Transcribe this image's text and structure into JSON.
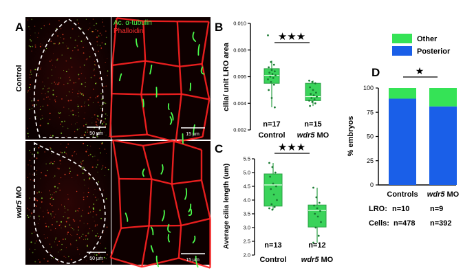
{
  "figure": {
    "panel_letters": [
      "A",
      "B",
      "C",
      "D"
    ],
    "stain_labels": [
      "Ac. α-tubulin",
      "Phalloidin"
    ],
    "row_labels": [
      {
        "prefix": "",
        "italic": "",
        "text": "Control"
      },
      {
        "prefix": "",
        "italic": "wdr5",
        "text": " MO"
      }
    ],
    "scale_bars": [
      "50 µm",
      "15 µm",
      "50 µm",
      "15 µm"
    ],
    "star_b": "★★★",
    "star_c": "★★★",
    "star_d": "★",
    "colors": {
      "box_fill": "#3ad35a",
      "box_edge": "#2a9e43",
      "point": "#1a7a32",
      "posterior": "#1a5fe8",
      "other": "#35e356",
      "cilia_green": "#4cff4c",
      "actin_red": "#ff2222"
    }
  },
  "chart_data": [
    {
      "panel": "B",
      "type": "box",
      "ylabel": "cilia/ unit LRO area",
      "ylim": [
        0.002,
        0.01
      ],
      "yticks": [
        "0.002",
        "0.004",
        "0.006",
        "0.008",
        "0.010"
      ],
      "categories": [
        {
          "italic": "",
          "text": "Control",
          "n_label": "n=17"
        },
        {
          "italic": "wdr5",
          "text": " MO",
          "n_label": "n=15"
        }
      ],
      "boxes": [
        {
          "min": 0.0037,
          "q1": 0.0055,
          "median": 0.0061,
          "q3": 0.0066,
          "max": 0.0072
        },
        {
          "min": 0.0038,
          "q1": 0.0042,
          "median": 0.0045,
          "q3": 0.0055,
          "max": 0.0057
        }
      ],
      "points": [
        [
          0.0091,
          0.0071,
          0.0069,
          0.0067,
          0.0065,
          0.0064,
          0.0063,
          0.0062,
          0.0061,
          0.006,
          0.0059,
          0.0058,
          0.0056,
          0.0054,
          0.005,
          0.0044,
          0.0037
        ],
        [
          0.0057,
          0.0056,
          0.0055,
          0.0052,
          0.005,
          0.0048,
          0.0047,
          0.0046,
          0.0045,
          0.0044,
          0.0043,
          0.0042,
          0.0041,
          0.004,
          0.0038
        ]
      ]
    },
    {
      "panel": "C",
      "type": "box",
      "ylabel": "Average cilia length (um)",
      "ylim": [
        2.0,
        5.5
      ],
      "yticks": [
        "2.0",
        "2.5",
        "3.0",
        "3.5",
        "4.0",
        "4.5",
        "5.0",
        "5.5"
      ],
      "categories": [
        {
          "italic": "",
          "text": "Control",
          "n_label": "n=13"
        },
        {
          "italic": "wdr5",
          "text": " MO",
          "n_label": "n=12"
        }
      ],
      "boxes": [
        {
          "min": 3.65,
          "q1": 3.78,
          "median": 4.55,
          "q3": 4.95,
          "max": 5.35
        },
        {
          "min": 2.45,
          "q1": 3.02,
          "median": 3.62,
          "q3": 3.82,
          "max": 4.45
        }
      ],
      "points": [
        [
          5.35,
          5.2,
          5.0,
          4.85,
          4.6,
          4.5,
          4.4,
          4.2,
          4.0,
          3.85,
          3.75,
          3.7,
          3.65
        ],
        [
          4.45,
          4.1,
          3.9,
          3.8,
          3.7,
          3.6,
          3.5,
          3.4,
          3.2,
          3.0,
          2.7,
          2.45
        ]
      ]
    },
    {
      "panel": "D",
      "type": "bar",
      "stacked": true,
      "ylabel": "% embryos",
      "ylim": [
        0,
        100
      ],
      "yticks": [
        "0",
        "25",
        "50",
        "75",
        "100"
      ],
      "categories": [
        {
          "italic": "",
          "text": "Controls"
        },
        {
          "italic": "wdr5",
          "text": " MO"
        }
      ],
      "series": [
        {
          "name": "Posterior",
          "values": [
            89,
            81
          ]
        },
        {
          "name": "Other",
          "values": [
            11,
            19
          ]
        }
      ],
      "legend": [
        "Other",
        "Posterior"
      ],
      "legend_position": "top",
      "table": {
        "rows": [
          {
            "label": "LRO:",
            "values": [
              "n=10",
              "n=9"
            ]
          },
          {
            "label": "Cells:",
            "values": [
              "n=478",
              "n=392"
            ]
          }
        ]
      }
    }
  ]
}
